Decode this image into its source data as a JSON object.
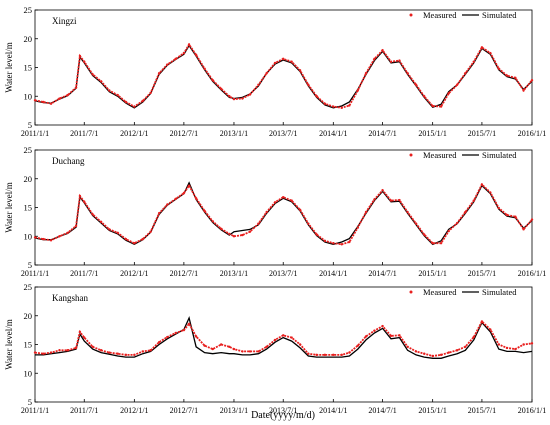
{
  "figure": {
    "xlabel": "Date(yyyy/m/d)"
  },
  "colors": {
    "measured": "#e8201f",
    "simulated": "#000000",
    "axis": "#000000"
  },
  "chart_data": [
    {
      "type": "line",
      "title": "Xingzi",
      "ylabel": "Water level/m",
      "ylim": [
        5,
        25
      ],
      "yticks": [
        5,
        10,
        15,
        20,
        25
      ],
      "xlim": [
        "2011/1/1",
        "2016/1/1"
      ],
      "xticks": [
        "2011/1/1",
        "2011/7/1",
        "2012/1/1",
        "2012/7/1",
        "2013/1/1",
        "2013/7/1",
        "2014/1/1",
        "2014/7/1",
        "2015/1/1",
        "2015/7/1",
        "2016/1/1"
      ],
      "legend": {
        "placement": "top-right",
        "measured": "Measured",
        "simulated": "Simulated"
      },
      "series": [
        {
          "name": "Measured",
          "style": "dots",
          "x": [
            "2011/1/1",
            "2011/2/1",
            "2011/3/1",
            "2011/4/1",
            "2011/5/1",
            "2011/6/1",
            "2011/6/15",
            "2011/7/1",
            "2011/8/1",
            "2011/9/1",
            "2011/10/1",
            "2011/11/1",
            "2011/12/1",
            "2012/1/1",
            "2012/2/1",
            "2012/3/1",
            "2012/4/1",
            "2012/5/1",
            "2012/6/1",
            "2012/7/1",
            "2012/7/20",
            "2012/8/15",
            "2012/9/15",
            "2012/10/15",
            "2012/11/15",
            "2012/12/15",
            "2013/1/1",
            "2013/2/1",
            "2013/3/1",
            "2013/4/1",
            "2013/5/1",
            "2013/6/1",
            "2013/7/1",
            "2013/8/1",
            "2013/9/1",
            "2013/10/1",
            "2013/11/1",
            "2013/12/1",
            "2014/1/1",
            "2014/2/1",
            "2014/3/1",
            "2014/4/1",
            "2014/5/1",
            "2014/6/1",
            "2014/7/1",
            "2014/8/1",
            "2014/9/1",
            "2014/10/1",
            "2014/11/1",
            "2014/12/1",
            "2015/1/1",
            "2015/2/1",
            "2015/3/1",
            "2015/4/1",
            "2015/5/1",
            "2015/6/1",
            "2015/7/1",
            "2015/8/1",
            "2015/9/1",
            "2015/10/1",
            "2015/11/1",
            "2015/12/1",
            "2016/1/1"
          ],
          "y": [
            9.3,
            9.0,
            8.7,
            9.6,
            10.2,
            11.5,
            17.0,
            16.0,
            13.8,
            12.6,
            11.0,
            10.2,
            9.0,
            8.2,
            9.2,
            10.6,
            14.0,
            15.5,
            16.5,
            17.5,
            19.0,
            17.2,
            14.8,
            12.8,
            11.3,
            10.0,
            9.5,
            9.6,
            10.3,
            12.0,
            14.0,
            15.8,
            16.5,
            16.0,
            14.5,
            12.0,
            10.0,
            8.7,
            8.2,
            8.0,
            8.4,
            11.0,
            14.0,
            16.5,
            18.0,
            16.0,
            16.2,
            14.0,
            12.0,
            10.0,
            8.3,
            8.2,
            10.5,
            12.0,
            14.0,
            16.0,
            18.5,
            17.5,
            14.8,
            13.6,
            13.2,
            11.0,
            12.8
          ]
        },
        {
          "name": "Simulated",
          "style": "line",
          "x": [
            "2011/1/1",
            "2011/2/1",
            "2011/3/1",
            "2011/4/1",
            "2011/5/1",
            "2011/6/1",
            "2011/6/15",
            "2011/7/1",
            "2011/8/1",
            "2011/9/1",
            "2011/10/1",
            "2011/11/1",
            "2011/12/1",
            "2012/1/1",
            "2012/2/1",
            "2012/3/1",
            "2012/4/1",
            "2012/5/1",
            "2012/6/1",
            "2012/7/1",
            "2012/7/20",
            "2012/8/15",
            "2012/9/15",
            "2012/10/15",
            "2012/11/15",
            "2012/12/15",
            "2013/1/1",
            "2013/2/1",
            "2013/3/1",
            "2013/4/1",
            "2013/5/1",
            "2013/6/1",
            "2013/7/1",
            "2013/8/1",
            "2013/9/1",
            "2013/10/1",
            "2013/11/1",
            "2013/12/1",
            "2014/1/1",
            "2014/2/1",
            "2014/3/1",
            "2014/4/1",
            "2014/5/1",
            "2014/6/1",
            "2014/7/1",
            "2014/8/1",
            "2014/9/1",
            "2014/10/1",
            "2014/11/1",
            "2014/12/1",
            "2015/1/1",
            "2015/2/1",
            "2015/3/1",
            "2015/4/1",
            "2015/5/1",
            "2015/6/1",
            "2015/7/1",
            "2015/8/1",
            "2015/9/1",
            "2015/10/1",
            "2015/11/1",
            "2015/12/1",
            "2016/1/1"
          ],
          "y": [
            9.2,
            8.9,
            8.8,
            9.5,
            10.1,
            11.4,
            16.8,
            15.8,
            13.6,
            12.4,
            10.8,
            10.0,
            8.8,
            8.0,
            9.0,
            10.5,
            13.8,
            15.4,
            16.4,
            17.3,
            18.8,
            17.0,
            14.6,
            12.6,
            11.1,
            9.8,
            9.6,
            9.8,
            10.4,
            11.8,
            14.0,
            15.6,
            16.3,
            15.8,
            14.3,
            11.8,
            9.8,
            8.5,
            8.0,
            8.3,
            9.0,
            11.2,
            13.8,
            16.2,
            17.8,
            15.8,
            16.0,
            13.8,
            11.8,
            9.8,
            8.1,
            8.6,
            10.8,
            12.0,
            13.8,
            15.8,
            18.3,
            17.3,
            14.6,
            13.4,
            13.0,
            11.2,
            12.6
          ]
        }
      ]
    },
    {
      "type": "line",
      "title": "Duchang",
      "ylabel": "Water level/m",
      "ylim": [
        5,
        25
      ],
      "yticks": [
        5,
        10,
        15,
        20,
        25
      ],
      "xlim": [
        "2011/1/1",
        "2016/1/1"
      ],
      "xticks": [
        "2011/1/1",
        "2011/7/1",
        "2012/1/1",
        "2012/7/1",
        "2013/1/1",
        "2013/7/1",
        "2014/1/1",
        "2014/7/1",
        "2015/1/1",
        "2015/7/1",
        "2016/1/1"
      ],
      "legend": {
        "placement": "top-right",
        "measured": "Measured",
        "simulated": "Simulated"
      },
      "series": [
        {
          "name": "Measured",
          "style": "dots",
          "x": [
            "2011/1/1",
            "2011/2/1",
            "2011/3/1",
            "2011/4/1",
            "2011/5/1",
            "2011/6/1",
            "2011/6/15",
            "2011/7/1",
            "2011/8/1",
            "2011/9/1",
            "2011/10/1",
            "2011/11/1",
            "2011/12/1",
            "2012/1/1",
            "2012/2/1",
            "2012/3/1",
            "2012/4/1",
            "2012/5/1",
            "2012/6/1",
            "2012/7/1",
            "2012/7/20",
            "2012/8/15",
            "2012/9/15",
            "2012/10/15",
            "2012/11/15",
            "2012/12/15",
            "2013/1/1",
            "2013/2/1",
            "2013/3/1",
            "2013/4/1",
            "2013/5/1",
            "2013/6/1",
            "2013/7/1",
            "2013/8/1",
            "2013/9/1",
            "2013/10/1",
            "2013/11/1",
            "2013/12/1",
            "2014/1/1",
            "2014/2/1",
            "2014/3/1",
            "2014/4/1",
            "2014/5/1",
            "2014/6/1",
            "2014/7/1",
            "2014/8/1",
            "2014/9/1",
            "2014/10/1",
            "2014/11/1",
            "2014/12/1",
            "2015/1/1",
            "2015/2/1",
            "2015/3/1",
            "2015/4/1",
            "2015/5/1",
            "2015/6/1",
            "2015/7/1",
            "2015/8/1",
            "2015/9/1",
            "2015/10/1",
            "2015/11/1",
            "2015/12/1",
            "2016/1/1"
          ],
          "y": [
            9.8,
            9.5,
            9.3,
            10.0,
            10.6,
            11.8,
            17.0,
            16.0,
            13.8,
            12.5,
            11.2,
            10.6,
            9.5,
            8.8,
            9.5,
            10.8,
            14.0,
            15.5,
            16.5,
            17.5,
            18.8,
            16.6,
            14.4,
            12.6,
            11.3,
            10.4,
            10.0,
            10.2,
            10.8,
            12.2,
            14.2,
            15.9,
            16.8,
            16.2,
            14.6,
            12.2,
            10.3,
            9.2,
            8.8,
            8.6,
            9.0,
            11.5,
            14.2,
            16.4,
            18.0,
            16.2,
            16.3,
            14.2,
            12.2,
            10.3,
            8.8,
            8.8,
            10.9,
            12.3,
            14.2,
            16.2,
            19.0,
            17.6,
            14.9,
            13.7,
            13.4,
            11.2,
            12.9
          ]
        },
        {
          "name": "Simulated",
          "style": "line",
          "x": [
            "2011/1/1",
            "2011/2/1",
            "2011/3/1",
            "2011/4/1",
            "2011/5/1",
            "2011/6/1",
            "2011/6/15",
            "2011/7/1",
            "2011/8/1",
            "2011/9/1",
            "2011/10/1",
            "2011/11/1",
            "2011/12/1",
            "2012/1/1",
            "2012/2/1",
            "2012/3/1",
            "2012/4/1",
            "2012/5/1",
            "2012/6/1",
            "2012/7/1",
            "2012/7/20",
            "2012/8/15",
            "2012/9/15",
            "2012/10/15",
            "2012/11/15",
            "2012/12/15",
            "2013/1/1",
            "2013/2/1",
            "2013/3/1",
            "2013/4/1",
            "2013/5/1",
            "2013/6/1",
            "2013/7/1",
            "2013/8/1",
            "2013/9/1",
            "2013/10/1",
            "2013/11/1",
            "2013/12/1",
            "2014/1/1",
            "2014/2/1",
            "2014/3/1",
            "2014/4/1",
            "2014/5/1",
            "2014/6/1",
            "2014/7/1",
            "2014/8/1",
            "2014/9/1",
            "2014/10/1",
            "2014/11/1",
            "2014/12/1",
            "2015/1/1",
            "2015/2/1",
            "2015/3/1",
            "2015/4/1",
            "2015/5/1",
            "2015/6/1",
            "2015/7/1",
            "2015/8/1",
            "2015/9/1",
            "2015/10/1",
            "2015/11/1",
            "2015/12/1",
            "2016/1/1"
          ],
          "y": [
            9.7,
            9.4,
            9.4,
            10.0,
            10.5,
            11.6,
            16.8,
            15.8,
            13.6,
            12.3,
            11.0,
            10.4,
            9.3,
            8.6,
            9.4,
            10.7,
            13.8,
            15.4,
            16.4,
            17.4,
            19.3,
            16.4,
            14.2,
            12.4,
            11.1,
            10.2,
            10.8,
            11.0,
            11.2,
            12.0,
            14.0,
            15.7,
            16.6,
            16.0,
            14.4,
            12.0,
            10.1,
            9.0,
            8.6,
            9.0,
            9.6,
            11.7,
            14.0,
            16.2,
            17.8,
            16.0,
            16.1,
            14.0,
            12.0,
            10.1,
            8.6,
            9.2,
            11.2,
            12.2,
            14.0,
            16.0,
            18.8,
            17.4,
            14.7,
            13.5,
            13.2,
            11.4,
            12.7
          ]
        }
      ]
    },
    {
      "type": "line",
      "title": "Kangshan",
      "ylabel": "Water level/m",
      "ylim": [
        5,
        25
      ],
      "yticks": [
        5,
        10,
        15,
        20,
        25
      ],
      "xlim": [
        "2011/1/1",
        "2016/1/1"
      ],
      "xticks": [
        "2011/1/1",
        "2011/7/1",
        "2012/1/1",
        "2012/7/1",
        "2013/1/1",
        "2013/7/1",
        "2014/1/1",
        "2014/7/1",
        "2015/1/1",
        "2015/7/1",
        "2016/1/1"
      ],
      "legend": {
        "placement": "top-right",
        "measured": "Measured",
        "simulated": "Simulated"
      },
      "series": [
        {
          "name": "Measured",
          "style": "dots",
          "x": [
            "2011/1/1",
            "2011/2/1",
            "2011/3/1",
            "2011/4/1",
            "2011/5/1",
            "2011/6/1",
            "2011/6/15",
            "2011/7/1",
            "2011/8/1",
            "2011/9/1",
            "2011/10/1",
            "2011/11/1",
            "2011/12/1",
            "2012/1/1",
            "2012/2/1",
            "2012/3/1",
            "2012/4/1",
            "2012/5/1",
            "2012/6/1",
            "2012/7/1",
            "2012/7/20",
            "2012/8/15",
            "2012/9/15",
            "2012/10/15",
            "2012/11/15",
            "2012/12/15",
            "2013/1/1",
            "2013/2/1",
            "2013/3/1",
            "2013/4/1",
            "2013/5/1",
            "2013/6/1",
            "2013/7/1",
            "2013/8/1",
            "2013/9/1",
            "2013/10/1",
            "2013/11/1",
            "2013/12/1",
            "2014/1/1",
            "2014/2/1",
            "2014/3/1",
            "2014/4/1",
            "2014/5/1",
            "2014/6/1",
            "2014/7/1",
            "2014/8/1",
            "2014/9/1",
            "2014/10/1",
            "2014/11/1",
            "2014/12/1",
            "2015/1/1",
            "2015/2/1",
            "2015/3/1",
            "2015/4/1",
            "2015/5/1",
            "2015/6/1",
            "2015/7/1",
            "2015/8/1",
            "2015/9/1",
            "2015/10/1",
            "2015/11/1",
            "2015/12/1",
            "2016/1/1"
          ],
          "y": [
            13.6,
            13.4,
            13.6,
            14.0,
            14.0,
            14.4,
            17.2,
            16.2,
            14.6,
            14.0,
            13.6,
            13.4,
            13.2,
            13.2,
            13.8,
            14.0,
            15.4,
            16.3,
            17.0,
            17.5,
            18.6,
            16.4,
            14.8,
            14.2,
            15.0,
            14.6,
            14.2,
            13.8,
            13.8,
            13.8,
            14.6,
            15.8,
            16.6,
            16.2,
            15.0,
            13.4,
            13.2,
            13.2,
            13.2,
            13.2,
            13.6,
            14.8,
            16.4,
            17.4,
            18.2,
            16.5,
            16.6,
            14.6,
            13.8,
            13.4,
            13.0,
            13.2,
            13.6,
            14.0,
            14.6,
            16.3,
            19.0,
            17.6,
            15.0,
            14.4,
            14.2,
            15.0,
            15.2
          ]
        },
        {
          "name": "Simulated",
          "style": "line",
          "x": [
            "2011/1/1",
            "2011/2/1",
            "2011/3/1",
            "2011/4/1",
            "2011/5/1",
            "2011/6/1",
            "2011/6/15",
            "2011/7/1",
            "2011/8/1",
            "2011/9/1",
            "2011/10/1",
            "2011/11/1",
            "2011/12/1",
            "2012/1/1",
            "2012/2/1",
            "2012/3/1",
            "2012/4/1",
            "2012/5/1",
            "2012/6/1",
            "2012/7/1",
            "2012/7/20",
            "2012/8/15",
            "2012/9/15",
            "2012/10/15",
            "2012/11/15",
            "2012/12/15",
            "2013/1/1",
            "2013/2/1",
            "2013/3/1",
            "2013/4/1",
            "2013/5/1",
            "2013/6/1",
            "2013/7/1",
            "2013/8/1",
            "2013/9/1",
            "2013/10/1",
            "2013/11/1",
            "2013/12/1",
            "2014/1/1",
            "2014/2/1",
            "2014/3/1",
            "2014/4/1",
            "2014/5/1",
            "2014/6/1",
            "2014/7/1",
            "2014/8/1",
            "2014/9/1",
            "2014/10/1",
            "2014/11/1",
            "2014/12/1",
            "2015/1/1",
            "2015/2/1",
            "2015/3/1",
            "2015/4/1",
            "2015/5/1",
            "2015/6/1",
            "2015/7/1",
            "2015/8/1",
            "2015/9/1",
            "2015/10/1",
            "2015/11/1",
            "2015/12/1",
            "2016/1/1"
          ],
          "y": [
            13.2,
            13.2,
            13.4,
            13.6,
            13.8,
            14.2,
            16.8,
            15.6,
            14.2,
            13.6,
            13.3,
            13.0,
            12.8,
            12.8,
            13.4,
            13.8,
            15.0,
            16.0,
            16.8,
            17.6,
            19.6,
            14.6,
            13.6,
            13.4,
            13.6,
            13.4,
            13.4,
            13.2,
            13.2,
            13.4,
            14.2,
            15.4,
            16.2,
            15.6,
            14.4,
            13.0,
            12.8,
            12.8,
            12.8,
            12.8,
            13.0,
            14.2,
            15.8,
            17.0,
            17.8,
            16.0,
            16.2,
            14.0,
            13.2,
            12.8,
            12.6,
            12.6,
            13.0,
            13.4,
            14.0,
            15.8,
            18.8,
            17.2,
            14.2,
            13.8,
            13.8,
            13.6,
            13.8
          ]
        }
      ]
    }
  ]
}
